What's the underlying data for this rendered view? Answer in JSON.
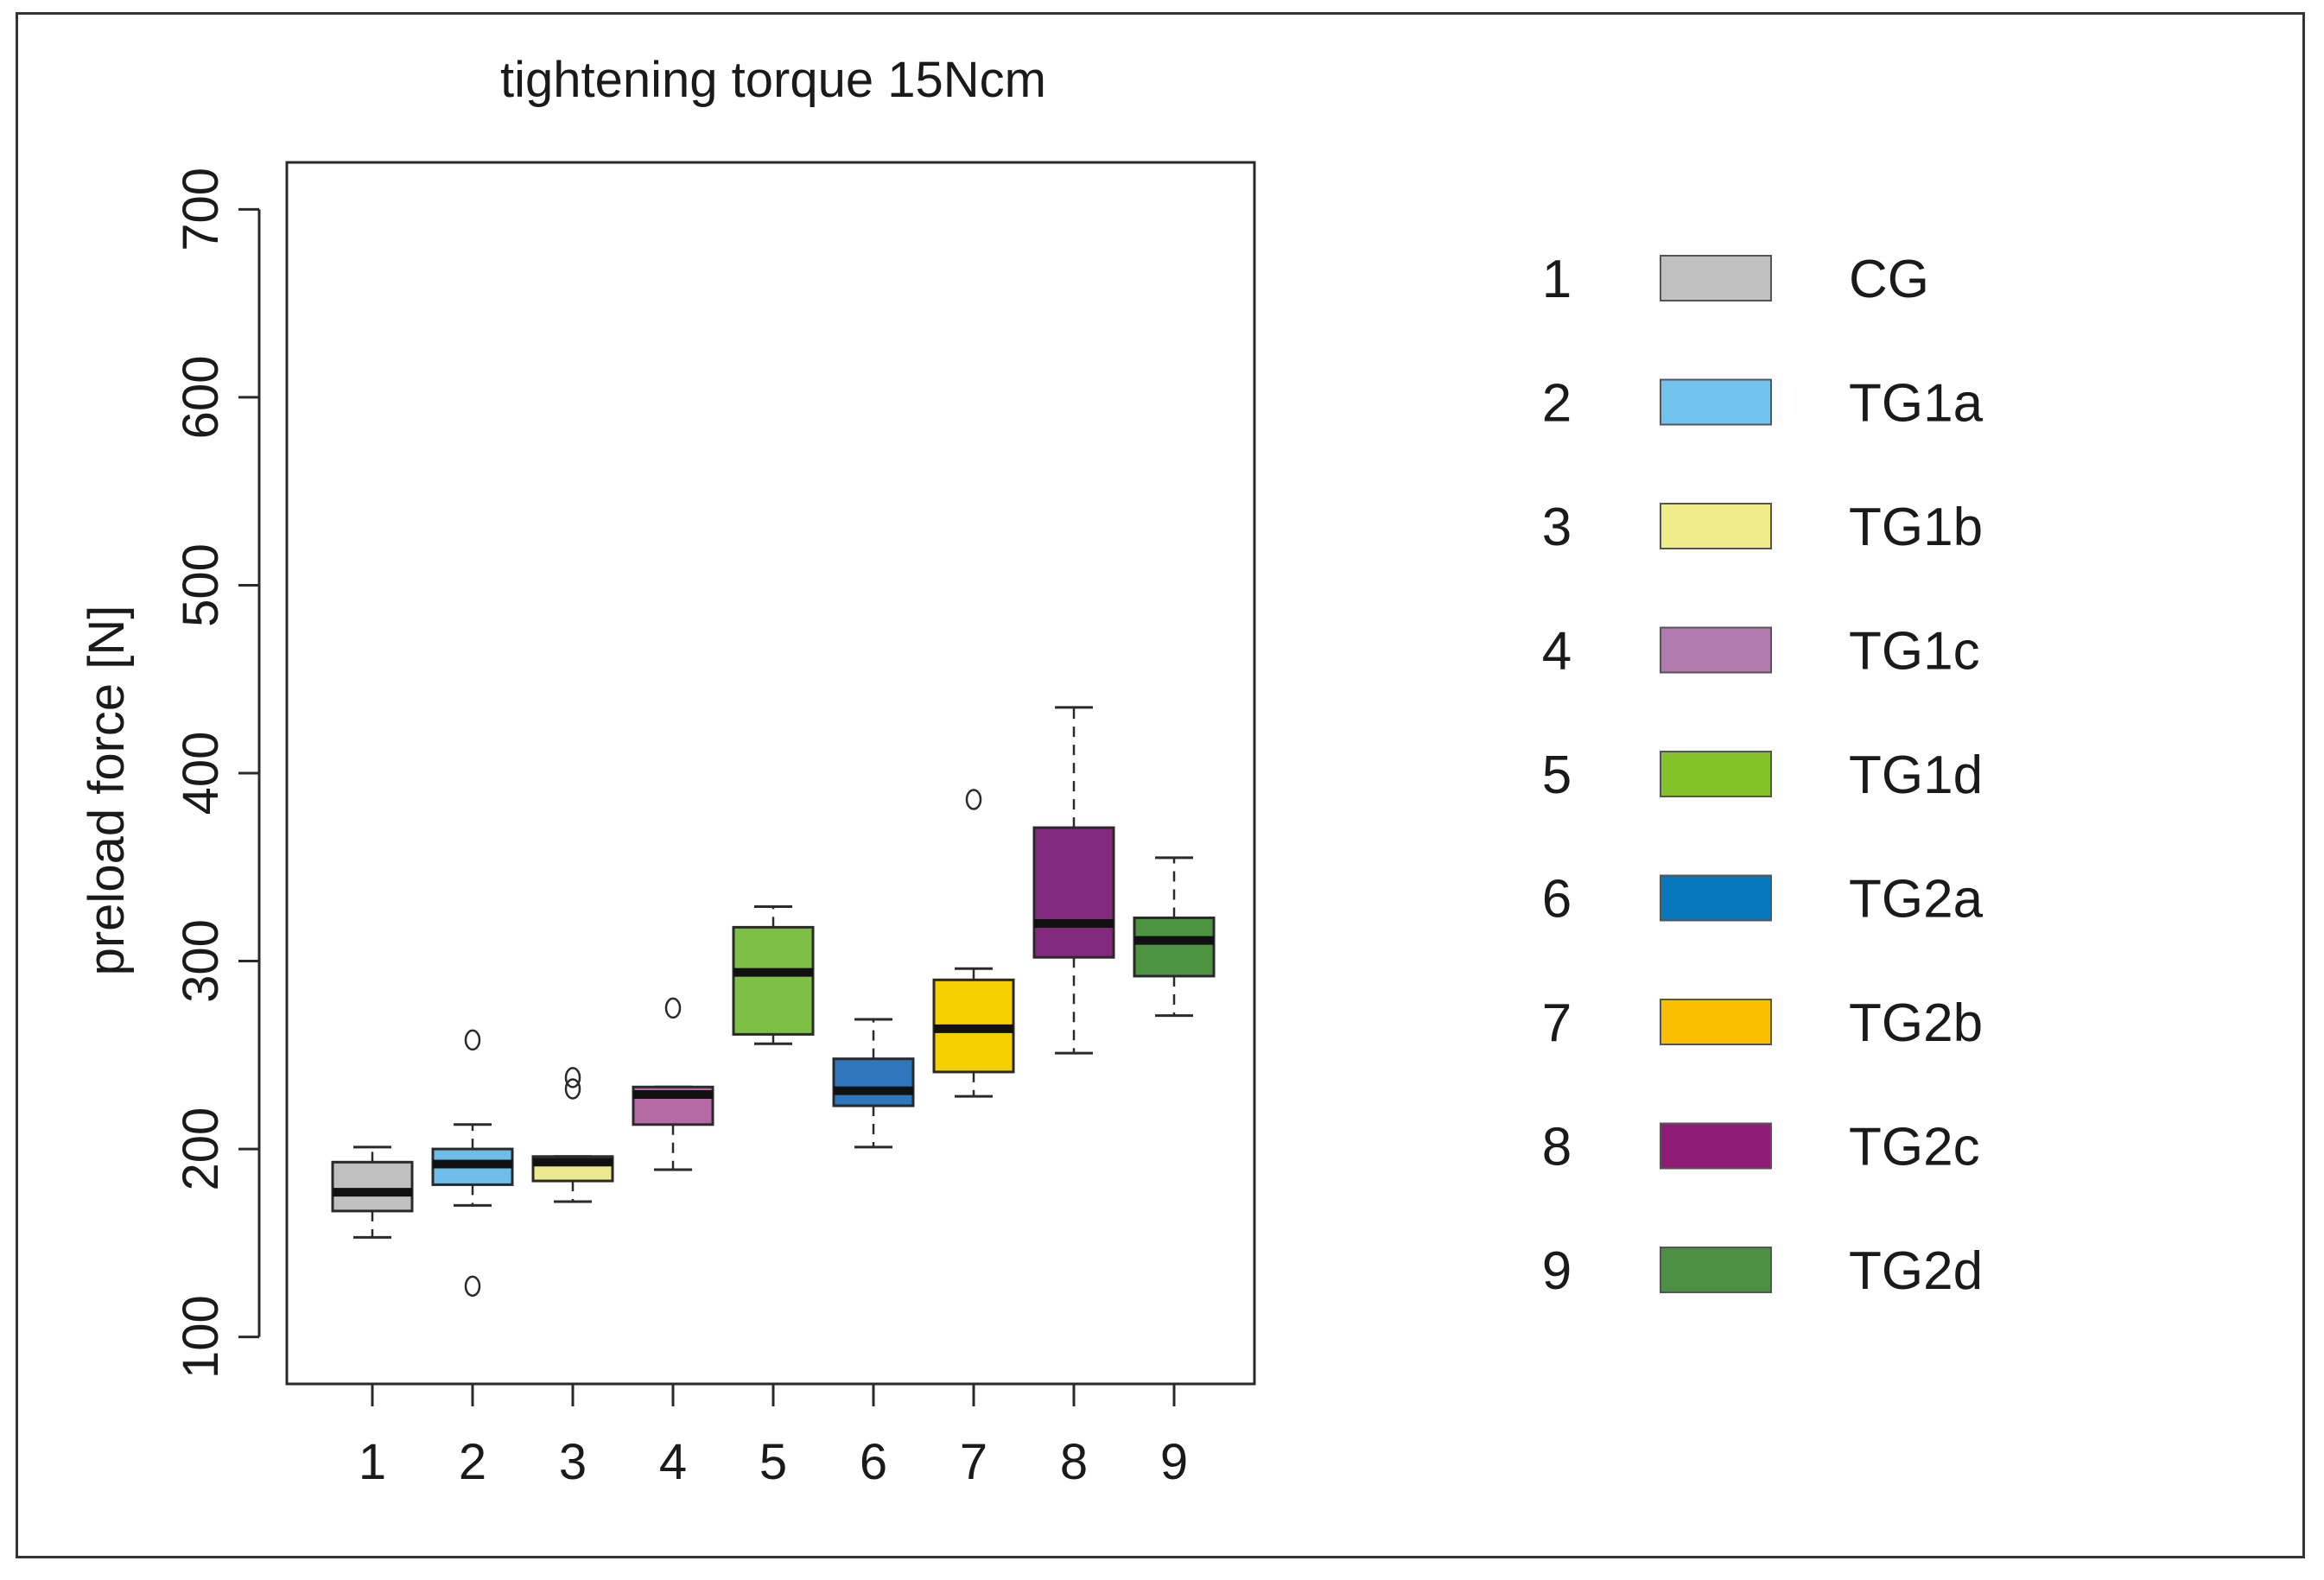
{
  "chart_data": {
    "type": "boxplot",
    "title": "tightening torque 15Ncm",
    "xlabel": "",
    "ylabel": "preload force [N]",
    "ylim": [
      75,
      725
    ],
    "yticks": [
      100,
      200,
      300,
      400,
      500,
      600,
      700
    ],
    "categories": [
      "1",
      "2",
      "3",
      "4",
      "5",
      "6",
      "7",
      "8",
      "9"
    ],
    "boxes": [
      {
        "group": "1",
        "name": "CG",
        "color": "#c0c0c0",
        "whisker_low": 153,
        "q1": 167,
        "median": 177,
        "q3": 193,
        "whisker_high": 201,
        "outliers": []
      },
      {
        "group": "2",
        "name": "TG1a",
        "color": "#6ebde8",
        "whisker_low": 170,
        "q1": 181,
        "median": 192,
        "q3": 200,
        "whisker_high": 213,
        "outliers": [
          127,
          258
        ]
      },
      {
        "group": "3",
        "name": "TG1b",
        "color": "#ede98e",
        "whisker_low": 172,
        "q1": 183,
        "median": 193,
        "q3": 196,
        "whisker_high": 196,
        "outliers": [
          232,
          238
        ]
      },
      {
        "group": "4",
        "name": "TG1c",
        "color": "#b56aa6",
        "whisker_low": 189,
        "q1": 213,
        "median": 229,
        "q3": 233,
        "whisker_high": 233,
        "outliers": [
          275
        ]
      },
      {
        "group": "5",
        "name": "TG1d",
        "color": "#7cc146",
        "whisker_low": 256,
        "q1": 261,
        "median": 294,
        "q3": 318,
        "whisker_high": 329,
        "outliers": []
      },
      {
        "group": "6",
        "name": "TG2a",
        "color": "#2f76bd",
        "whisker_low": 201,
        "q1": 223,
        "median": 231,
        "q3": 248,
        "whisker_high": 269,
        "outliers": []
      },
      {
        "group": "7",
        "name": "TG2b",
        "color": "#f6cf00",
        "whisker_low": 228,
        "q1": 241,
        "median": 264,
        "q3": 290,
        "whisker_high": 296,
        "outliers": [
          386
        ]
      },
      {
        "group": "8",
        "name": "TG2c",
        "color": "#832a7e",
        "whisker_low": 251,
        "q1": 302,
        "median": 320,
        "q3": 371,
        "whisker_high": 435,
        "outliers": []
      },
      {
        "group": "9",
        "name": "TG2d",
        "color": "#4d9440",
        "whisker_low": 271,
        "q1": 292,
        "median": 311,
        "q3": 323,
        "whisker_high": 355,
        "outliers": []
      }
    ],
    "legend": {
      "placement": "right",
      "entries": [
        {
          "number": "1",
          "label": "CG",
          "color": "#c0c0c0"
        },
        {
          "number": "2",
          "label": "TG1a",
          "color": "#72c3ee"
        },
        {
          "number": "3",
          "label": "TG1b",
          "color": "#efec8c"
        },
        {
          "number": "4",
          "label": "TG1c",
          "color": "#b07aaf"
        },
        {
          "number": "5",
          "label": "TG1d",
          "color": "#82c32a"
        },
        {
          "number": "6",
          "label": "TG2a",
          "color": "#0777bd"
        },
        {
          "number": "7",
          "label": "TG2b",
          "color": "#f9bf00"
        },
        {
          "number": "8",
          "label": "TG2c",
          "color": "#8e1b76"
        },
        {
          "number": "9",
          "label": "TG2d",
          "color": "#4b8f42"
        }
      ]
    }
  }
}
